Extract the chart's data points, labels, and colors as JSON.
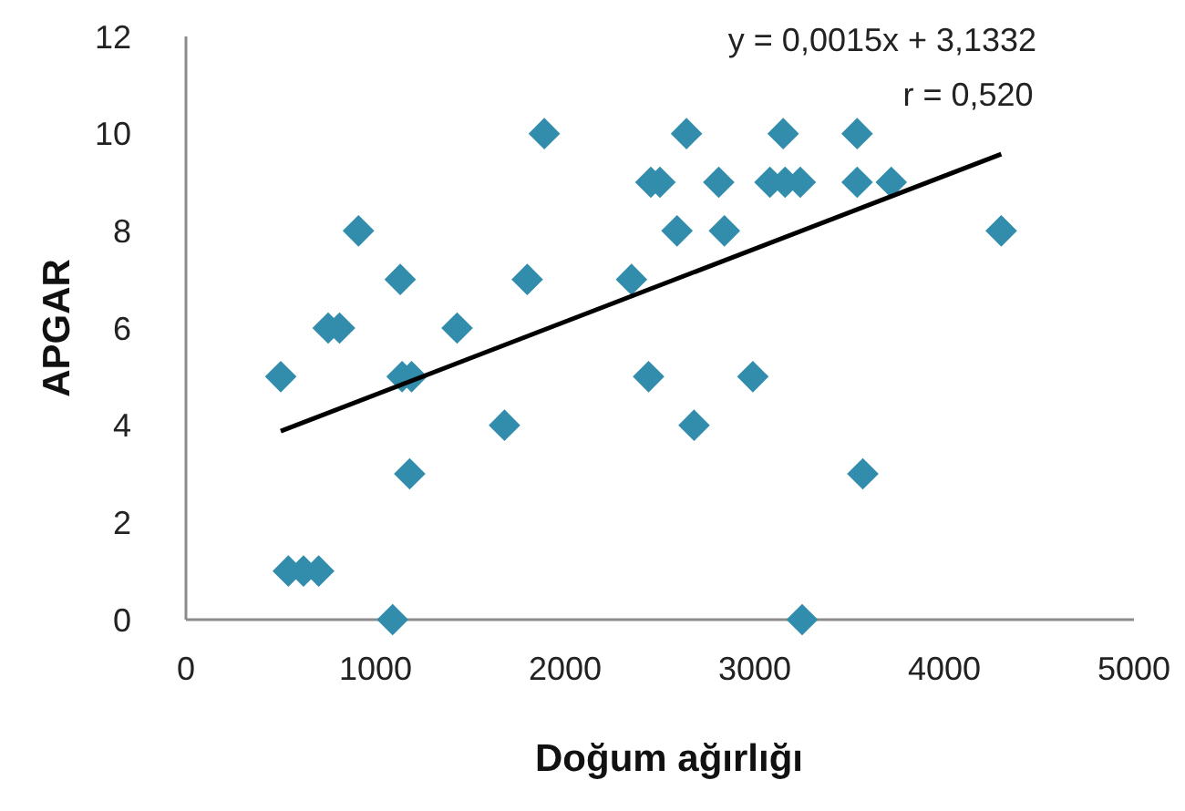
{
  "chart_data": {
    "type": "scatter",
    "xlabel": "Doğum ağırlığı",
    "ylabel": "APGAR",
    "xlim": [
      0,
      5000
    ],
    "ylim": [
      0,
      12
    ],
    "xticks": [
      0,
      1000,
      2000,
      3000,
      4000,
      5000
    ],
    "yticks": [
      0,
      2,
      4,
      6,
      8,
      10,
      12
    ],
    "grid": false,
    "marker": "diamond",
    "annotations": [
      "y = 0,0015x + 3,1332",
      "r = 0,520"
    ],
    "series": [
      {
        "color": "#318dab",
        "x": [
          500,
          540,
          620,
          700,
          750,
          810,
          910,
          1090,
          1130,
          1140,
          1190,
          1180,
          1430,
          1680,
          1800,
          1890,
          2350,
          2440,
          2452,
          2500,
          2590,
          2640,
          2680,
          2810,
          2840,
          2990,
          3080,
          3160,
          3240,
          3150,
          3250,
          3540,
          3540,
          3570,
          3720,
          4300
        ],
        "values": [
          5,
          1,
          1,
          1,
          6,
          6,
          8,
          0,
          7,
          5,
          5,
          3,
          6,
          4,
          7,
          10,
          7,
          5,
          9,
          9,
          8,
          10,
          4,
          9,
          8,
          5,
          9,
          9,
          9,
          10,
          0,
          10,
          9,
          3,
          9,
          8
        ]
      },
      {
        "type": "line",
        "color": "#000000",
        "marker": "none",
        "x": [
          500,
          4300
        ],
        "values": [
          3.88,
          9.58
        ]
      }
    ]
  }
}
